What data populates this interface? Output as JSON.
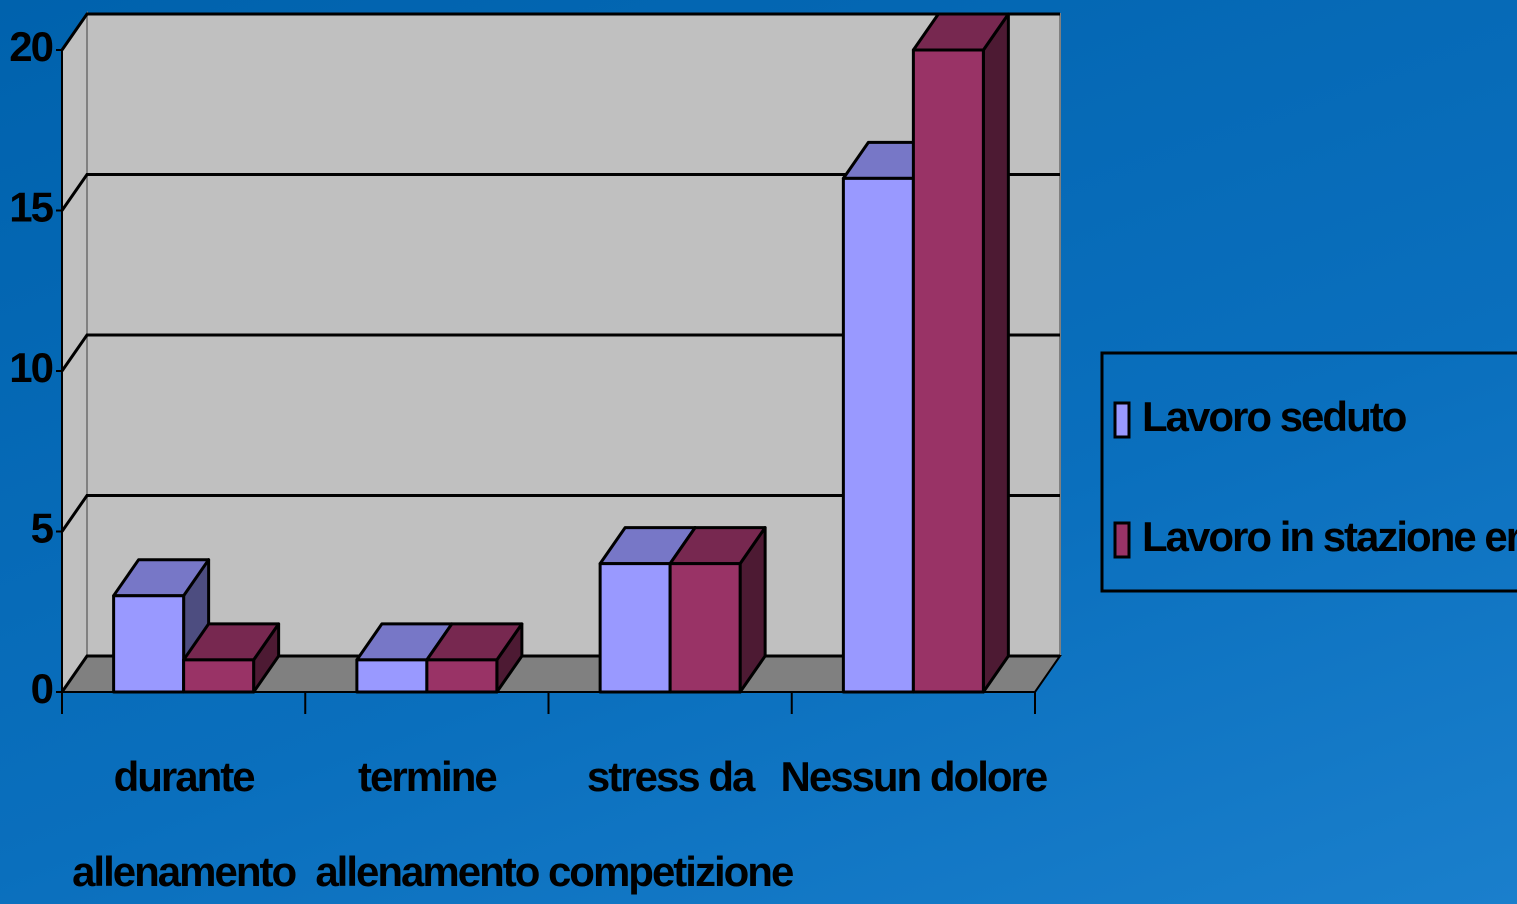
{
  "chart_data": {
    "type": "bar3d",
    "categories": [
      [
        "durante",
        "allenamento"
      ],
      [
        "termine",
        "allenamento"
      ],
      [
        "stress da",
        "competizione"
      ],
      [
        "Nessun dolore"
      ]
    ],
    "series": [
      {
        "name": "Lavoro seduto",
        "color": "#9999ff",
        "values": [
          3,
          1,
          4,
          16
        ]
      },
      {
        "name": "Lavoro in stazione eretta",
        "color": "#993366",
        "values": [
          1,
          1,
          4,
          20
        ]
      }
    ],
    "ylim": [
      0,
      20
    ],
    "yticks": [
      0,
      5,
      10,
      15,
      20
    ],
    "grid": true,
    "legend": "right"
  }
}
